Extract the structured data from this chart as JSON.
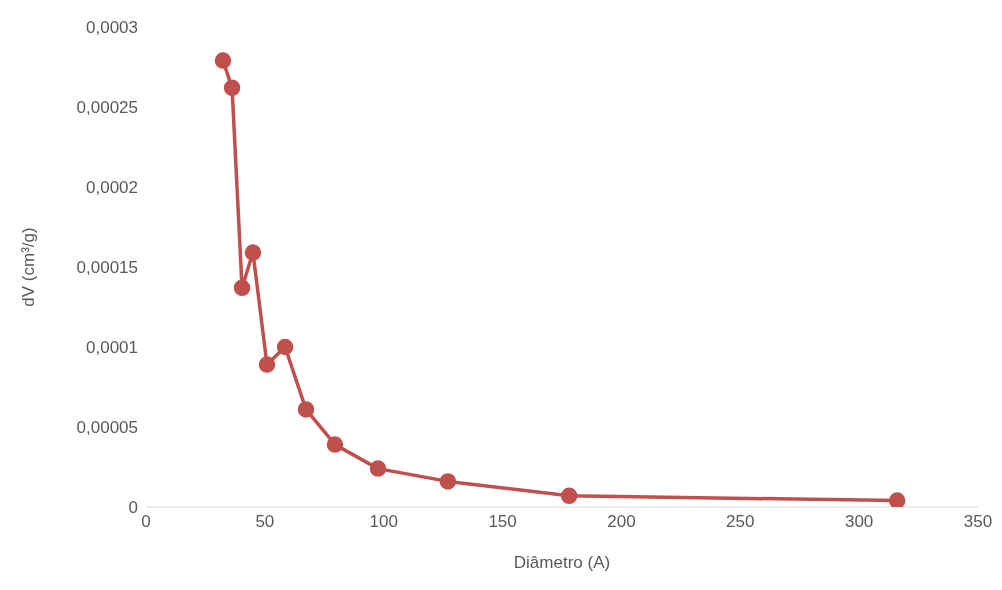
{
  "chart_data": {
    "type": "line",
    "xlabel": "Diâmetro (A)",
    "ylabel": "dV (cm³/g)",
    "x": [
      32.4,
      36.2,
      40.4,
      45.0,
      50.9,
      58.5,
      67.3,
      79.5,
      97.6,
      127.0,
      178.0,
      316.0
    ],
    "series": [
      {
        "color": "#c0504d",
        "values": [
          0.000279,
          0.000262,
          0.000137,
          0.000159,
          8.9e-05,
          0.0001,
          6.1e-05,
          3.9e-05,
          2.4e-05,
          1.6e-05,
          7e-06,
          4e-06
        ]
      }
    ],
    "xlim": [
      0,
      350
    ],
    "xticks": [
      0,
      50,
      100,
      150,
      200,
      250,
      300,
      350
    ],
    "ylim": [
      0,
      0.0003
    ],
    "yticks": [
      {
        "value": 0,
        "label": "0"
      },
      {
        "value": 5e-05,
        "label": "0,00005"
      },
      {
        "value": 0.0001,
        "label": "0,0001"
      },
      {
        "value": 0.00015,
        "label": "0,00015"
      },
      {
        "value": 0.0002,
        "label": "0,0002"
      },
      {
        "value": 0.00025,
        "label": "0,00025"
      },
      {
        "value": 0.0003,
        "label": "0,0003"
      }
    ],
    "grid": false,
    "legend": false,
    "marker": "circle",
    "line_style": "solid"
  }
}
